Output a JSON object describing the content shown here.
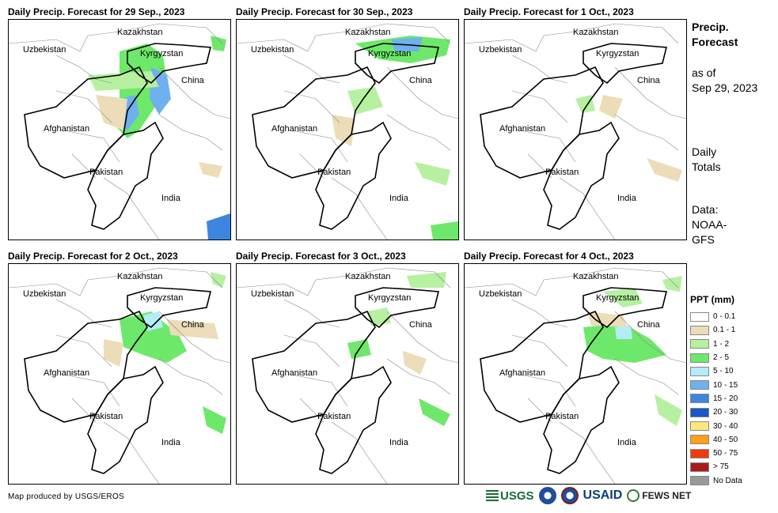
{
  "panels": [
    {
      "title": "Daily Precip. Forecast for 29 Sep., 2023"
    },
    {
      "title": "Daily Precip. Forecast for 30 Sep., 2023"
    },
    {
      "title": "Daily Precip. Forecast for 1 Oct., 2023"
    },
    {
      "title": "Daily Precip. Forecast for 2 Oct., 2023"
    },
    {
      "title": "Daily Precip. Forecast for 3 Oct., 2023"
    },
    {
      "title": "Daily Precip. Forecast for 4 Oct., 2023"
    }
  ],
  "map_labels": {
    "kazakhstan": "Kazakhstan",
    "uzbekistan": "Uzbekistan",
    "kyrgyzstan": "Kyrgyzstan",
    "china": "China",
    "afghanistan": "Afghanistan",
    "pakistan": "Pakistan",
    "india": "India"
  },
  "sidebar": {
    "title_line1": "Precip.",
    "title_line2": "Forecast",
    "asof_line1": "as of",
    "asof_line2": "Sep 29, 2023",
    "totals_line1": "Daily",
    "totals_line2": "Totals",
    "data_line1": "Data:",
    "data_line2": "NOAA-",
    "data_line3": "GFS"
  },
  "legend": {
    "title": "PPT (mm)",
    "items": [
      {
        "label": "0 - 0.1",
        "color": "#ffffff"
      },
      {
        "label": "0.1 - 1",
        "color": "#ecdcb8"
      },
      {
        "label": "1 - 2",
        "color": "#b6f0a0"
      },
      {
        "label": "2 - 5",
        "color": "#6ee86a"
      },
      {
        "label": "5 - 10",
        "color": "#b4ecf6"
      },
      {
        "label": "10 - 15",
        "color": "#6fb0ee"
      },
      {
        "label": "15 - 20",
        "color": "#3d86e0"
      },
      {
        "label": "20 - 30",
        "color": "#1c57c6"
      },
      {
        "label": "30 - 40",
        "color": "#ffe680"
      },
      {
        "label": "40 - 50",
        "color": "#ff9f1a"
      },
      {
        "label": "50 - 75",
        "color": "#ee3a10"
      },
      {
        "label": "> 75",
        "color": "#a81c1c"
      },
      {
        "label": "No Data",
        "color": "#999999"
      }
    ]
  },
  "footer": {
    "credit": "Map produced by USGS/EROS",
    "logo_usgs": "USGS",
    "logo_usaid": "USAID",
    "logo_fews": "FEWS NET"
  }
}
